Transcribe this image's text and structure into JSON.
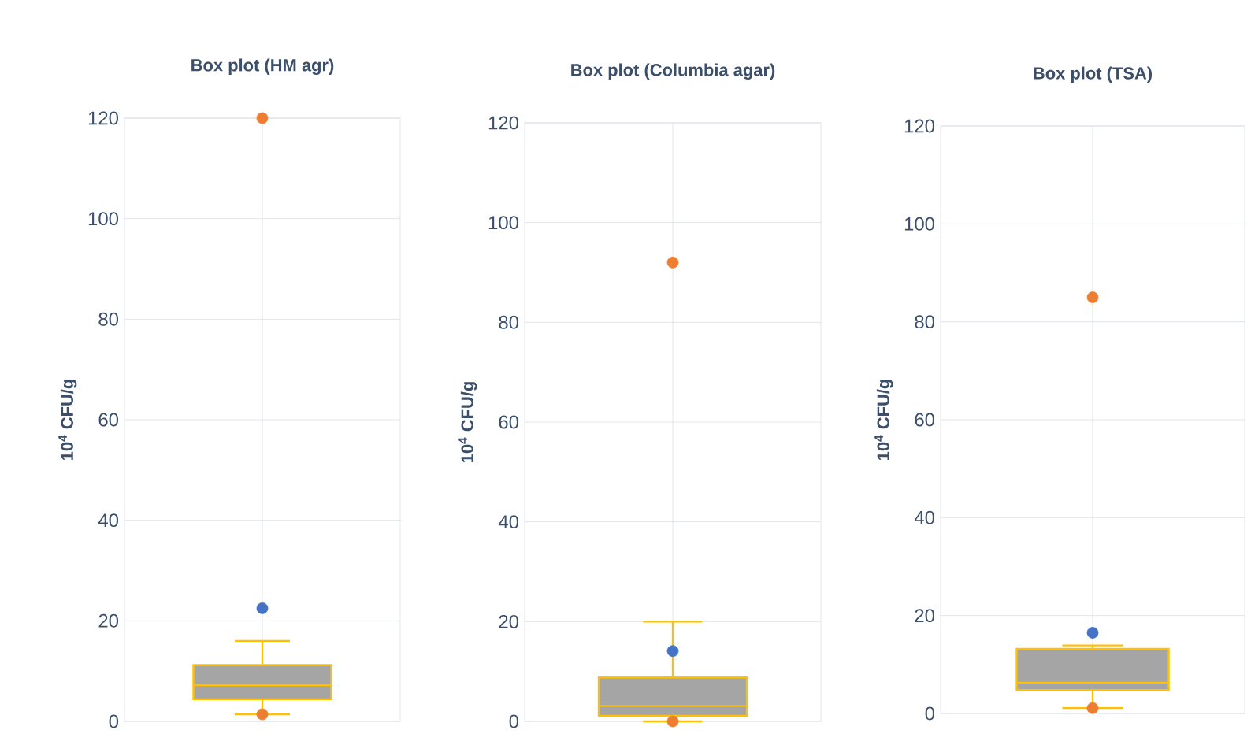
{
  "chart_data": [
    {
      "type": "box",
      "title": "Box plot (HM agr)",
      "ylabel": "10$^{4}$ CFU/g",
      "categories": [
        null
      ],
      "color": "#a5a5a5",
      "boxes": [
        {
          "low": 1.4,
          "q1": 4.4,
          "median": 7.2,
          "q3": 11.2,
          "high": 16,
          "mean": 22.5,
          "outliers": [
            120,
            1.4
          ]
        }
      ],
      "ylim": [
        0,
        120
      ],
      "yticks": [
        0,
        20,
        40,
        60,
        80,
        100,
        120
      ],
      "grid": true
    },
    {
      "type": "box",
      "title": "Box plot (Columbia agar)",
      "ylabel": "10$^{4}$ CFU/g",
      "categories": [
        null
      ],
      "color": "#a5a5a5",
      "boxes": [
        {
          "low": 0,
          "q1": 1.1,
          "median": 3.1,
          "q3": 8.8,
          "high": 20,
          "mean": 14.1,
          "outliers": [
            92,
            0
          ]
        }
      ],
      "ylim": [
        0,
        120
      ],
      "yticks": [
        0,
        20,
        40,
        60,
        80,
        100,
        120
      ],
      "grid": true
    },
    {
      "type": "box",
      "title": "Box plot (TSA)",
      "ylabel": "10$^{4}$ CFU/g",
      "categories": [
        null
      ],
      "color": "#a5a5a5",
      "boxes": [
        {
          "low": 1.1,
          "q1": 4.8,
          "median": 6.3,
          "q3": 13.2,
          "high": 13.9,
          "mean": 16.5,
          "outliers": [
            85,
            1.1
          ]
        }
      ],
      "ylim": [
        0,
        120
      ],
      "yticks": [
        0,
        20,
        40,
        60,
        80,
        100,
        120
      ],
      "grid": true
    }
  ]
}
